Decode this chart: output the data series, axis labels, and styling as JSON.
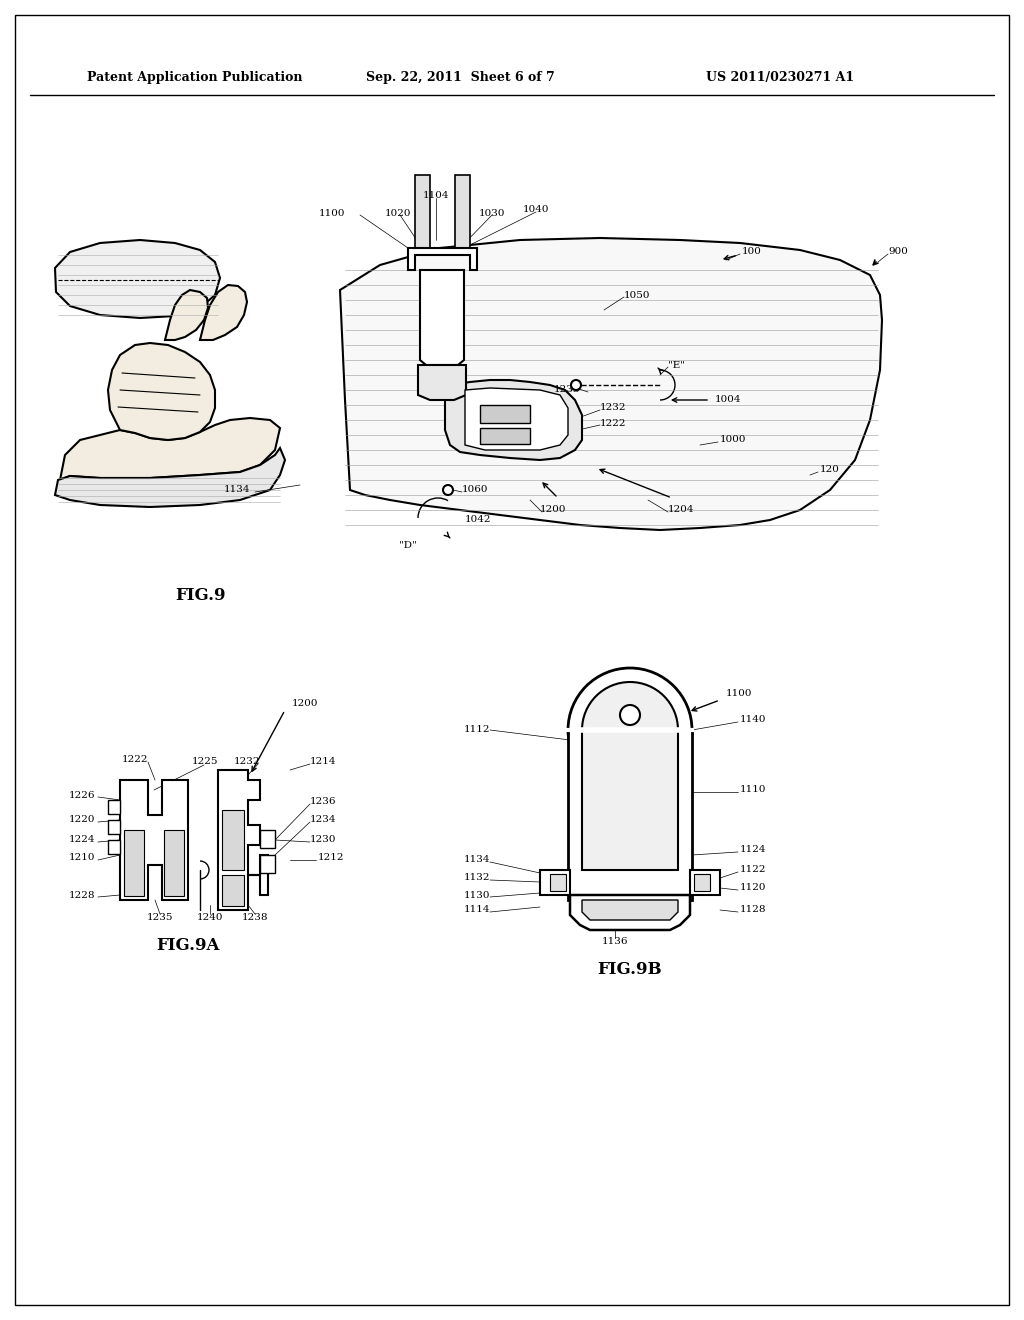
{
  "background_color": "#ffffff",
  "header_left": "Patent Application Publication",
  "header_mid": "Sep. 22, 2011  Sheet 6 of 7",
  "header_right": "US 2011/0230271 A1"
}
